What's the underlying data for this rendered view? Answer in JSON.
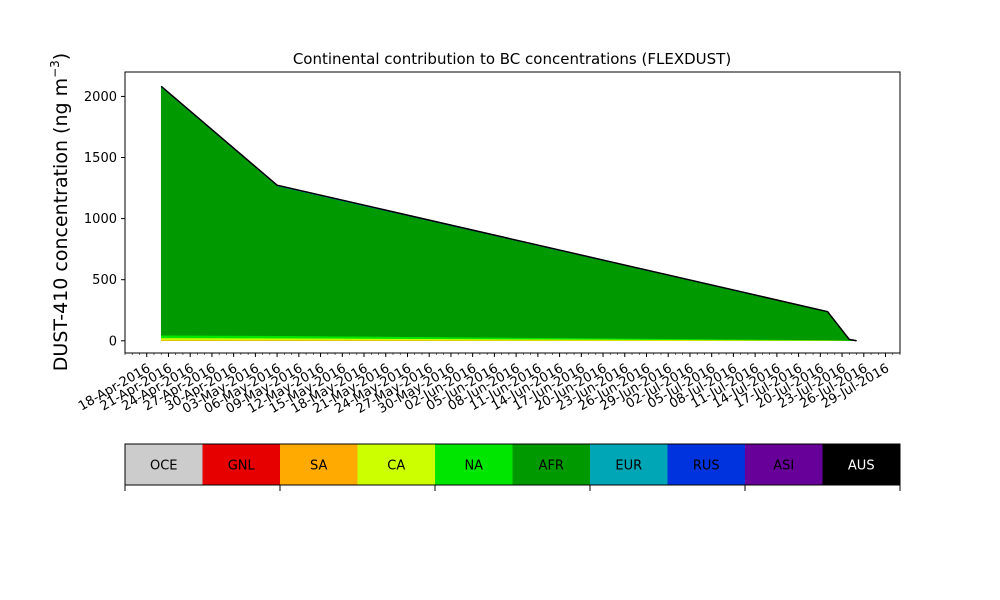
{
  "chart_data": {
    "type": "area",
    "title": "Continental contribution to BC concentrations (FLEXDUST)",
    "ylabel": "DUST-410 concentration (ng m⁻³)",
    "ylabel_main": "DUST-410 concentration (ng m",
    "ylabel_sup": "−3",
    "ylabel_close": ")",
    "ylim": [
      -100,
      2200
    ],
    "yticks": [
      0,
      500,
      1000,
      1500,
      2000
    ],
    "xlim": [
      "2016-04-15",
      "2016-07-31"
    ],
    "xticks": [
      "18-Apr-2016",
      "21-Apr-2016",
      "24-Apr-2016",
      "27-Apr-2016",
      "30-Apr-2016",
      "03-May-2016",
      "06-May-2016",
      "09-May-2016",
      "12-May-2016",
      "15-May-2016",
      "18-May-2016",
      "21-May-2016",
      "24-May-2016",
      "27-May-2016",
      "30-May-2016",
      "02-Jun-2016",
      "05-Jun-2016",
      "08-Jun-2016",
      "11-Jun-2016",
      "14-Jun-2016",
      "17-Jun-2016",
      "20-Jun-2016",
      "23-Jun-2016",
      "26-Jun-2016",
      "29-Jun-2016",
      "02-Jul-2016",
      "05-Jul-2016",
      "08-Jul-2016",
      "11-Jul-2016",
      "14-Jul-2016",
      "17-Jul-2016",
      "20-Jul-2016",
      "23-Jul-2016",
      "26-Jul-2016",
      "29-Jul-2016"
    ],
    "x": [
      "2016-04-20",
      "2016-05-06",
      "2016-07-21",
      "2016-07-24",
      "2016-07-25"
    ],
    "series": [
      {
        "name": "OCE",
        "color": "#cccccc",
        "values": [
          2,
          2,
          1,
          0.5,
          0
        ]
      },
      {
        "name": "GNL",
        "color": "#e60000",
        "values": [
          0.5,
          0.5,
          0.3,
          0.1,
          0
        ]
      },
      {
        "name": "SA",
        "color": "#ffaa00",
        "values": [
          1,
          1,
          0.5,
          0.2,
          0
        ]
      },
      {
        "name": "CA",
        "color": "#ccff00",
        "values": [
          20,
          18,
          2,
          1,
          0
        ]
      },
      {
        "name": "NA",
        "color": "#00e600",
        "values": [
          22,
          20,
          3,
          1,
          0
        ]
      },
      {
        "name": "AFR",
        "color": "#009900",
        "values": [
          2030,
          1225,
          229,
          7,
          0
        ]
      },
      {
        "name": "EUR",
        "color": "#00a5b6",
        "values": [
          3,
          3,
          1,
          0.5,
          0
        ]
      },
      {
        "name": "RUS",
        "color": "#0033dd",
        "values": [
          2,
          2,
          1,
          0.5,
          0
        ]
      },
      {
        "name": "ASI",
        "color": "#660099",
        "values": [
          1,
          1,
          0.5,
          0.2,
          0
        ]
      },
      {
        "name": "AUS",
        "color": "#000000",
        "values": [
          1,
          1,
          0.5,
          0.2,
          0
        ]
      }
    ],
    "grid": false,
    "legend_placement": "bottom colorbar"
  }
}
